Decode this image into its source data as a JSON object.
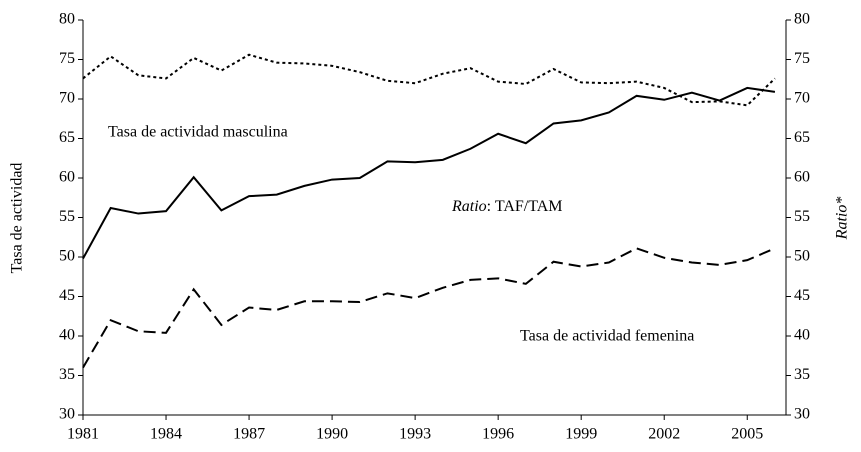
{
  "chart_data": {
    "type": "line",
    "ylabel": "Tasa de actividad",
    "y2label": "Ratio*",
    "xlim": [
      1981,
      2006.4
    ],
    "xticks": [
      1981,
      1984,
      1987,
      1990,
      1993,
      1996,
      1999,
      2002,
      2005
    ],
    "ylim": [
      30,
      80
    ],
    "yticks": [
      30,
      35,
      40,
      45,
      50,
      55,
      60,
      65,
      70,
      75,
      80
    ],
    "y2lim": [
      30,
      80
    ],
    "y2ticks": [
      30,
      35,
      40,
      45,
      50,
      55,
      60,
      65,
      70,
      75,
      80
    ],
    "x": [
      1981,
      1982,
      1983,
      1984,
      1985,
      1986,
      1987,
      1988,
      1989,
      1990,
      1991,
      1992,
      1993,
      1994,
      1995,
      1996,
      1997,
      1998,
      1999,
      2000,
      2001,
      2002,
      2003,
      2004,
      2005,
      2006
    ],
    "series": [
      {
        "name": "Tasa de actividad masculina",
        "color": "#000",
        "dash": "none",
        "values": [
          49.8,
          56.2,
          55.5,
          55.8,
          60.1,
          55.9,
          57.7,
          57.9,
          59.0,
          59.8,
          60.0,
          62.1,
          62.0,
          62.3,
          63.7,
          65.6,
          64.4,
          66.9,
          67.3,
          68.3,
          70.4,
          69.9,
          70.8,
          69.8,
          71.4,
          70.9
        ]
      },
      {
        "name": "Tasa de actividad femenina",
        "color": "#000",
        "dash": "12 6",
        "values": [
          36.0,
          42.0,
          40.6,
          40.4,
          45.9,
          41.4,
          43.6,
          43.3,
          44.4,
          44.4,
          44.3,
          45.4,
          44.8,
          46.1,
          47.1,
          47.3,
          46.6,
          49.4,
          48.8,
          49.3,
          51.1,
          49.9,
          49.3,
          49.0,
          49.6,
          51.1
        ]
      },
      {
        "color": "#000",
        "dash": "3 3",
        "axis": "y2",
        "values": [
          72.6,
          75.4,
          73.0,
          72.6,
          75.2,
          73.6,
          75.6,
          74.6,
          74.5,
          74.2,
          73.4,
          72.3,
          72.0,
          73.2,
          73.9,
          72.2,
          71.9,
          73.8,
          72.1,
          72.0,
          72.2,
          71.4,
          69.6,
          69.7,
          69.2,
          72.6
        ]
      }
    ],
    "annotations": [
      "Ratio",
      ": TAF/TAM"
    ]
  }
}
